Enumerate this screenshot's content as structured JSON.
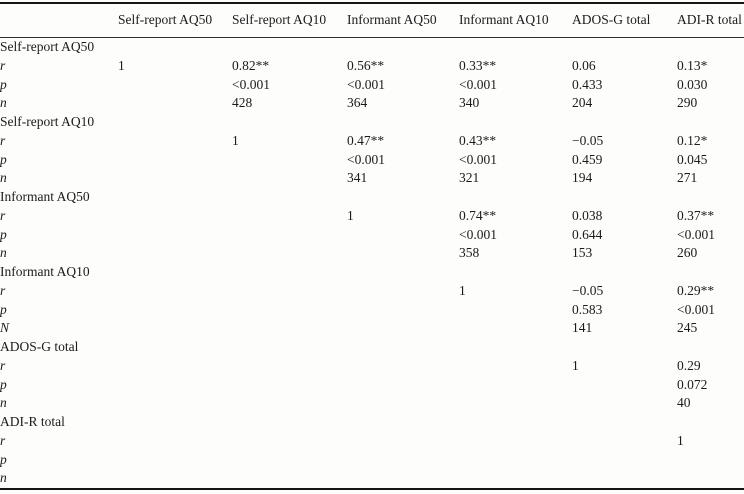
{
  "table": {
    "columns": [
      "",
      "Self-report AQ50",
      "Self-report AQ10",
      "Informant AQ50",
      "Informant AQ10",
      "ADOS-G total",
      "ADI-R total"
    ],
    "groups": [
      {
        "label": "Self-report AQ50",
        "rows": [
          {
            "stat": "r",
            "values": [
              "1",
              "0.82**",
              "0.56**",
              "0.33**",
              "0.06",
              "0.13*"
            ]
          },
          {
            "stat": "p",
            "values": [
              "",
              "<0.001",
              "<0.001",
              "<0.001",
              "0.433",
              "0.030"
            ]
          },
          {
            "stat": "n",
            "values": [
              "",
              "428",
              "364",
              "340",
              "204",
              "290"
            ]
          }
        ]
      },
      {
        "label": "Self-report AQ10",
        "rows": [
          {
            "stat": "r",
            "values": [
              "",
              "1",
              "0.47**",
              "0.43**",
              "−0.05",
              "0.12*"
            ]
          },
          {
            "stat": "p",
            "values": [
              "",
              "",
              "<0.001",
              "<0.001",
              "0.459",
              "0.045"
            ]
          },
          {
            "stat": "n",
            "values": [
              "",
              "",
              "341",
              "321",
              "194",
              "271"
            ]
          }
        ]
      },
      {
        "label": "Informant AQ50",
        "rows": [
          {
            "stat": "r",
            "values": [
              "",
              "",
              "1",
              "0.74**",
              "0.038",
              "0.37**"
            ]
          },
          {
            "stat": "p",
            "values": [
              "",
              "",
              "",
              "<0.001",
              "0.644",
              "<0.001"
            ]
          },
          {
            "stat": "n",
            "values": [
              "",
              "",
              "",
              "358",
              "153",
              "260"
            ]
          }
        ]
      },
      {
        "label": "Informant AQ10",
        "rows": [
          {
            "stat": "r",
            "values": [
              "",
              "",
              "",
              "1",
              "−0.05",
              "0.29**"
            ]
          },
          {
            "stat": "p",
            "values": [
              "",
              "",
              "",
              "",
              "0.583",
              "<0.001"
            ]
          },
          {
            "stat": "N",
            "values": [
              "",
              "",
              "",
              "",
              "141",
              "245"
            ]
          }
        ]
      },
      {
        "label": "ADOS-G total",
        "rows": [
          {
            "stat": "r",
            "values": [
              "",
              "",
              "",
              "",
              "1",
              "0.29"
            ]
          },
          {
            "stat": "p",
            "values": [
              "",
              "",
              "",
              "",
              "",
              "0.072"
            ]
          },
          {
            "stat": "n",
            "values": [
              "",
              "",
              "",
              "",
              "",
              "40"
            ]
          }
        ]
      },
      {
        "label": "ADI-R total",
        "rows": [
          {
            "stat": "r",
            "values": [
              "",
              "",
              "",
              "",
              "",
              "1"
            ]
          },
          {
            "stat": "p",
            "values": [
              "",
              "",
              "",
              "",
              "",
              ""
            ]
          },
          {
            "stat": "n",
            "values": [
              "",
              "",
              "",
              "",
              "",
              ""
            ]
          }
        ]
      }
    ]
  }
}
